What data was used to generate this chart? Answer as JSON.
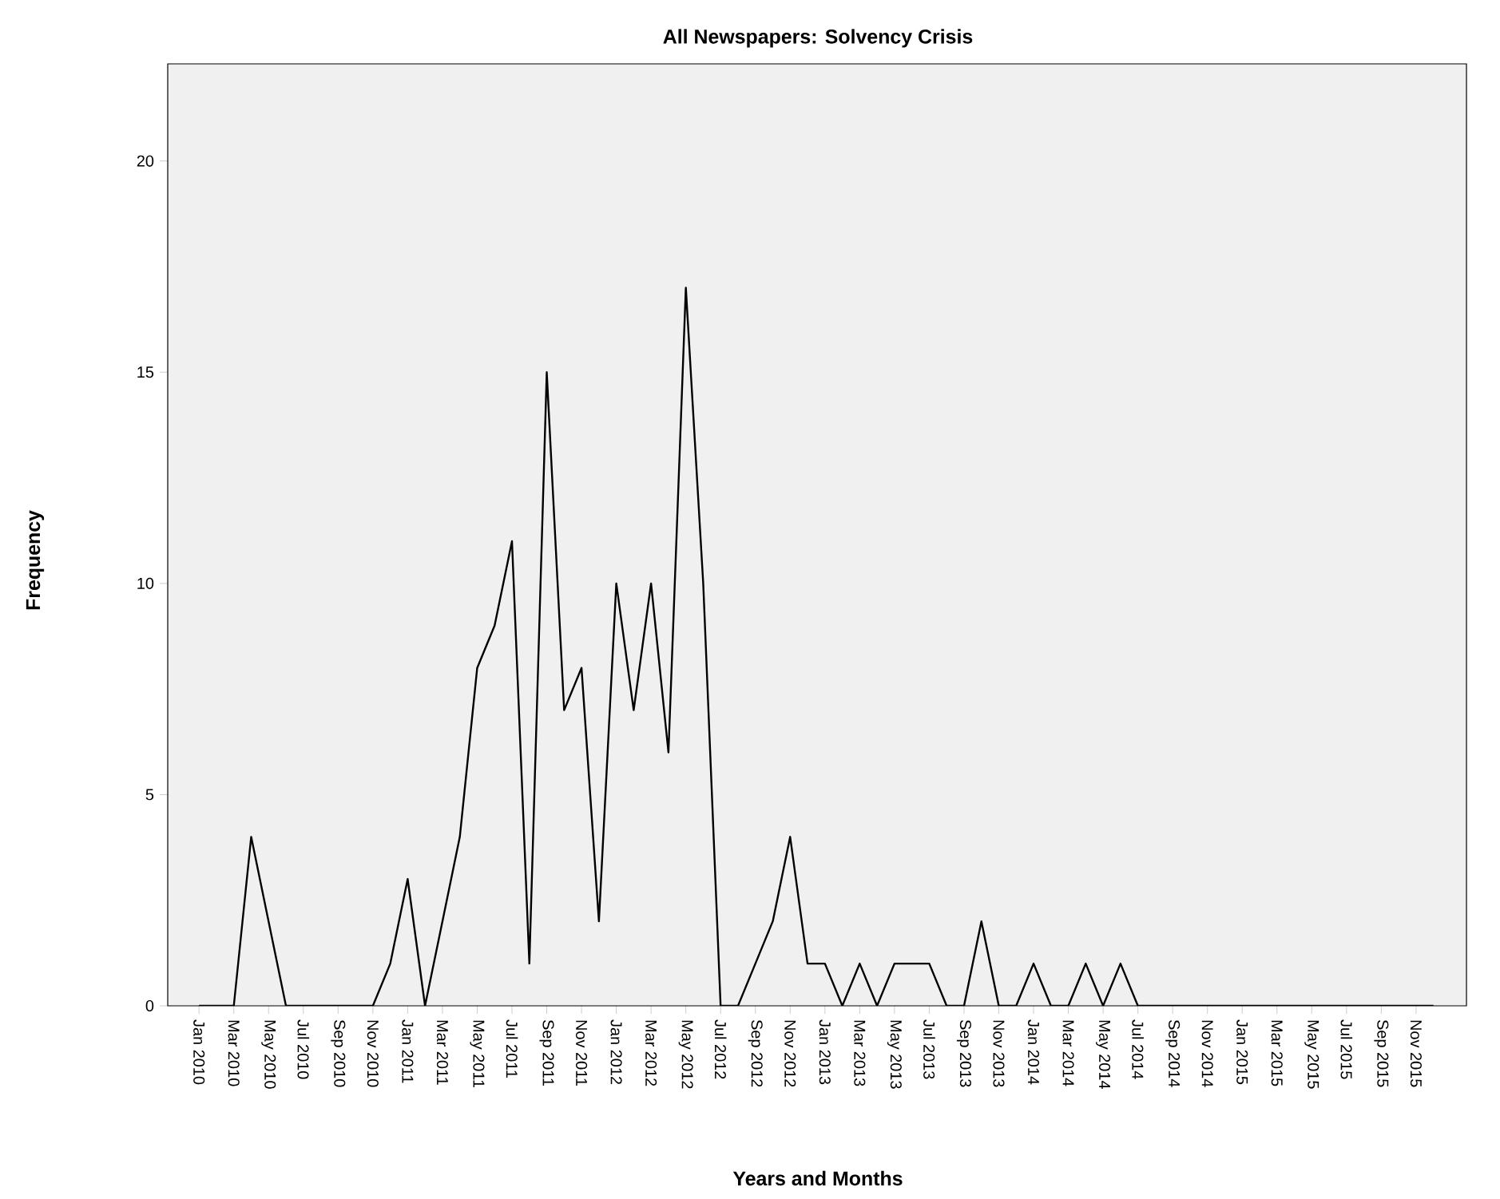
{
  "chart_data": {
    "type": "line",
    "title": "All Newspapers: Solvency Crisis",
    "xlabel": "Years and Months",
    "ylabel": "Frequency",
    "categories": [
      "Jan 2010",
      null,
      "Mar 2010",
      null,
      "May 2010",
      null,
      "Jul 2010",
      null,
      "Sep 2010",
      null,
      "Nov 2010",
      null,
      "Jan 2011",
      null,
      "Mar 2011",
      null,
      "May 2011",
      null,
      "Jul 2011",
      null,
      "Sep 2011",
      null,
      "Nov 2011",
      null,
      "Jan 2012",
      null,
      "Mar 2012",
      null,
      "May 2012",
      null,
      "Jul 2012",
      null,
      "Sep 2012",
      null,
      "Nov 2012",
      null,
      "Jan 2013",
      null,
      "Mar 2013",
      null,
      "May 2013",
      null,
      "Jul 2013",
      null,
      "Sep 2013",
      null,
      "Nov 2013",
      null,
      "Jan 2014",
      null,
      "Mar 2014",
      null,
      "May 2014",
      null,
      "Jul 2014",
      null,
      "Sep 2014",
      null,
      "Nov 2014",
      null,
      "Jan 2015",
      null,
      "Mar 2015",
      null,
      "May 2015",
      null,
      "Jul 2015",
      null,
      "Sep 2015",
      null,
      "Nov 2015",
      null
    ],
    "series": [
      {
        "color": "#000000",
        "values": [
          0,
          0,
          0,
          4,
          2,
          0,
          0,
          0,
          0,
          0,
          0,
          1,
          3,
          0,
          2,
          4,
          8,
          9,
          11,
          1,
          15,
          7,
          8,
          2,
          10,
          7,
          10,
          6,
          17,
          10,
          0,
          0,
          1,
          2,
          4,
          1,
          1,
          0,
          1,
          0,
          1,
          1,
          1,
          0,
          0,
          2,
          0,
          0,
          1,
          0,
          0,
          1,
          0,
          1,
          0,
          0,
          0,
          0,
          0,
          0,
          0,
          0,
          0,
          0,
          0,
          0,
          0,
          0,
          0,
          0,
          0,
          0
        ]
      }
    ],
    "ylim": [
      0,
      22.3
    ],
    "yticks": [
      0,
      5,
      10,
      15,
      20
    ]
  }
}
